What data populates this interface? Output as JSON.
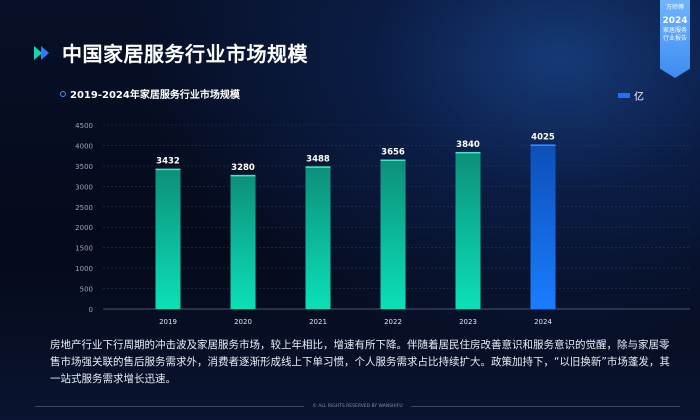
{
  "title": "中国家居服务行业市场规模",
  "badge": {
    "brand": "万师傅",
    "year": "2024",
    "line1": "家居服务",
    "line2": "行业报告"
  },
  "subtitle": "2019-2024年家居服务行业市场规模",
  "legend": "亿",
  "colors": {
    "teal_top": "#0d8f7a",
    "teal_bottom": "#0be0b8",
    "blue_top": "#0d4fb8",
    "blue_bottom": "#1a7dff"
  },
  "chart_data": {
    "type": "bar",
    "title": "2019-2024年家居服务行业市场规模",
    "categories": [
      "2019",
      "2020",
      "2021",
      "2022",
      "2023",
      "2024"
    ],
    "series": [
      {
        "name": "亿",
        "values": [
          3432,
          3280,
          3488,
          3656,
          3840,
          4025
        ]
      }
    ],
    "yticks": [
      "0",
      "500",
      "1000",
      "1500",
      "2000",
      "2500",
      "3000",
      "3500",
      "4000",
      "4500"
    ],
    "ylim": [
      0,
      4500
    ],
    "grid": true,
    "legend": "top-right",
    "highlight": "2024"
  },
  "description": "房地产行业下行周期的冲击波及家居服务市场，较上年相比，增速有所下降。伴随着居民住房改善意识和服务意识的觉醒，除与家居零售市场强关联的售后服务需求外，消费者逐渐形成线上下单习惯，个人服务需求占比持续扩大。政策加持下，“以旧换新”市场蓬发，其一站式服务需求增长迅速。",
  "footer": "© ALL RIGHTS RESERVED BY WANSHIFU"
}
